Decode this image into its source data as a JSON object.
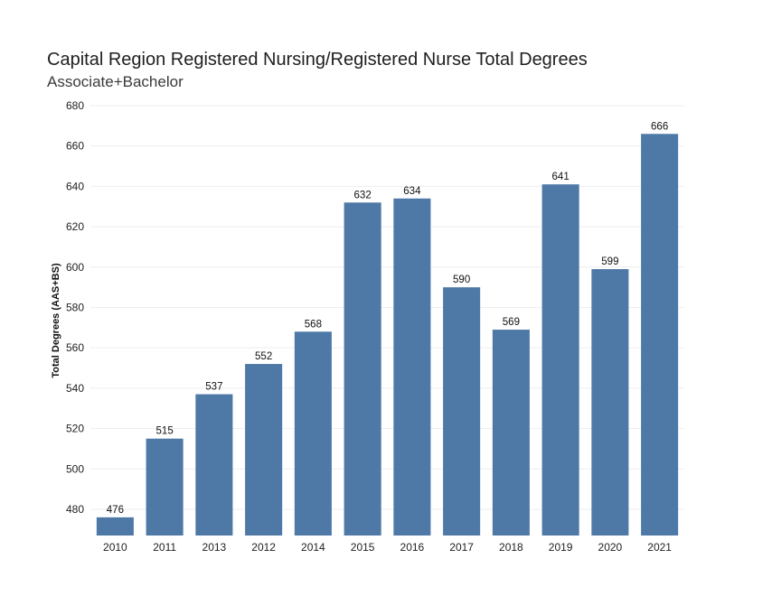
{
  "chart_data": {
    "type": "bar",
    "title": "Capital Region Registered Nursing/Registered Nurse Total Degrees",
    "subtitle": "Associate+Bachelor",
    "xlabel": "",
    "ylabel": "Total Degrees (AAS+BS)",
    "categories": [
      "2010",
      "2011",
      "2013",
      "2012",
      "2014",
      "2015",
      "2016",
      "2017",
      "2018",
      "2019",
      "2020",
      "2021"
    ],
    "values": [
      476,
      515,
      537,
      552,
      568,
      632,
      634,
      590,
      569,
      641,
      599,
      666
    ],
    "ylim": [
      467,
      680
    ],
    "yticks": [
      480,
      500,
      520,
      540,
      560,
      580,
      600,
      620,
      640,
      660,
      680
    ],
    "grid": true,
    "bar_color": "#4e79a7",
    "gridline_color": "#eeeeee",
    "show_data_labels": true
  }
}
